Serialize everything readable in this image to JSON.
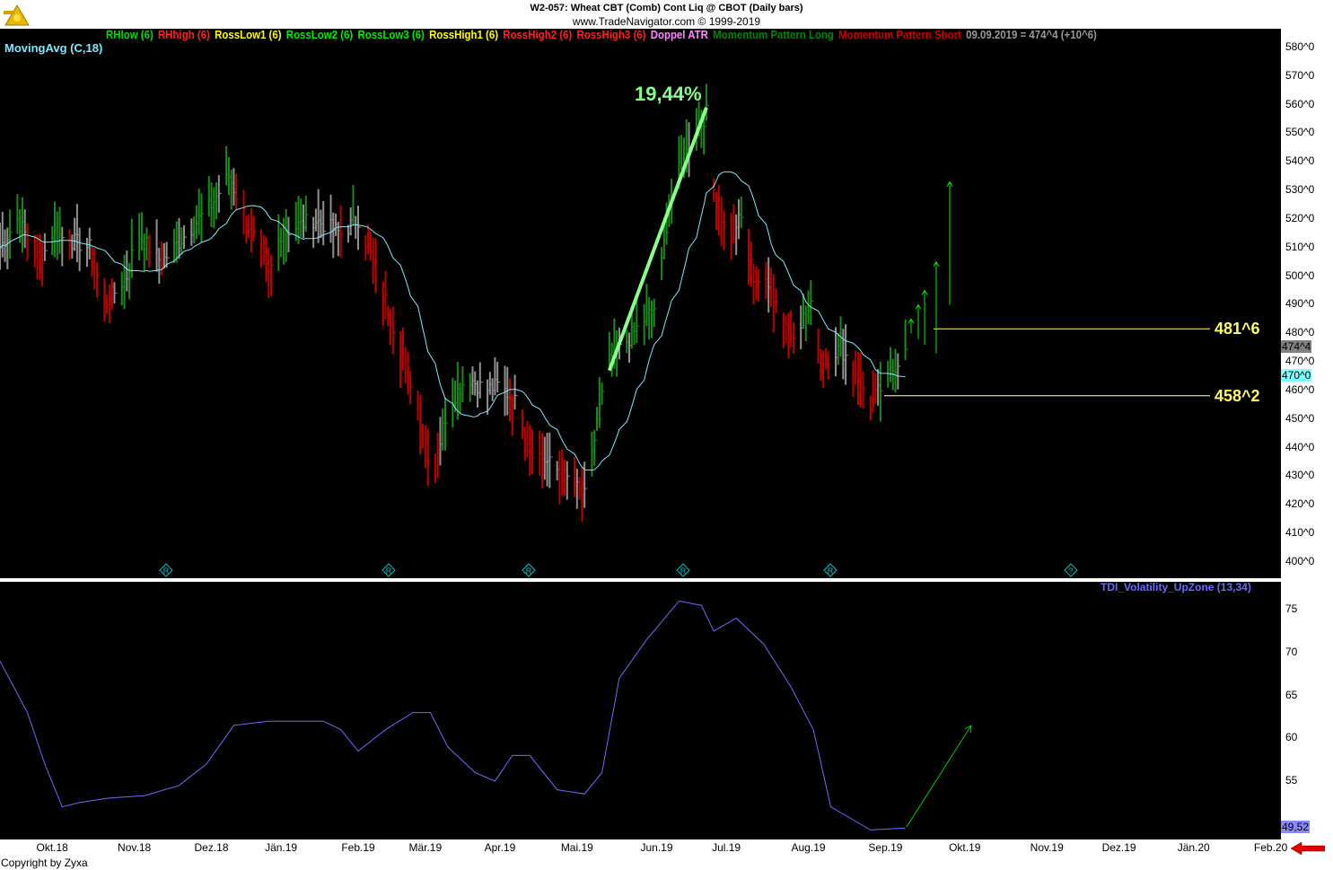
{
  "header": {
    "title": "W2-057:  Wheat CBT (Comb) Cont Liq @ CBOT  (Daily bars)",
    "subtitle": "www.TradeNavigator.com © 1999-2019",
    "copyright": "Copyright by Zyxa",
    "logo_icon": "sextant-logo-icon"
  },
  "legend": [
    {
      "label": "RHlow (6)",
      "color": "#00dd00"
    },
    {
      "label": "RHhigh (6)",
      "color": "#ff2020"
    },
    {
      "label": "RossLow1 (6)",
      "color": "#ffff00"
    },
    {
      "label": "RossLow2 (6)",
      "color": "#00ee00"
    },
    {
      "label": "RossLow3 (6)",
      "color": "#00ee00"
    },
    {
      "label": "RossHigh1 (6)",
      "color": "#ffff00"
    },
    {
      "label": "RossHigh2 (6)",
      "color": "#ff2020"
    },
    {
      "label": "RossHigh3 (6)",
      "color": "#ff2020"
    },
    {
      "label": "Doppel ATR",
      "color": "#ff88ff"
    },
    {
      "label": "Momentum Pattern Long",
      "color": "#008800"
    },
    {
      "label": "Momentum Pattern Short",
      "color": "#cc0000"
    },
    {
      "label": "09.09.2019 = 474^4 (+10^6)",
      "color": "#999999"
    }
  ],
  "moving_avg_label": "MovingAvg (C,18)",
  "tdi_label": "TDI_Volatility_UpZone (13,34)",
  "last_price_tag": "474^4",
  "ma_tag": "470^0",
  "tdi_tag": "49,52",
  "chart_data": [
    {
      "type": "bar",
      "title": "",
      "ylim": [
        398,
        583
      ],
      "xlim": [
        "2018-09-10",
        "2020-02-07"
      ],
      "y_ticks": [
        "580^0",
        "570^0",
        "560^0",
        "550^0",
        "540^0",
        "530^0",
        "520^0",
        "510^0",
        "500^0",
        "490^0",
        "480^0",
        "470^0",
        "460^0",
        "450^0",
        "440^0",
        "430^0",
        "420^0",
        "410^0",
        "400^0"
      ],
      "x_ticks": [
        {
          "date": "2018-10-01",
          "label": "Okt.18"
        },
        {
          "date": "2018-11-03",
          "label": "Nov.18"
        },
        {
          "date": "2018-12-04",
          "label": "Dez.18"
        },
        {
          "date": "2019-01-01",
          "label": "Jän.19"
        },
        {
          "date": "2019-02-01",
          "label": "Feb.19"
        },
        {
          "date": "2019-02-28",
          "label": "Mär.19"
        },
        {
          "date": "2019-03-30",
          "label": "Apr.19"
        },
        {
          "date": "2019-04-30",
          "label": "Mai.19"
        },
        {
          "date": "2019-06-01",
          "label": "Jun.19"
        },
        {
          "date": "2019-06-29",
          "label": "Jul.19"
        },
        {
          "date": "2019-08-01",
          "label": "Aug.19"
        },
        {
          "date": "2019-09-01",
          "label": "Sep.19"
        },
        {
          "date": "2019-09-30",
          "label": "Okt.19"
        },
        {
          "date": "2019-11-02",
          "label": "Nov.19"
        },
        {
          "date": "2019-12-01",
          "label": "Dez.19"
        },
        {
          "date": "2019-12-31",
          "label": "Jän.20"
        },
        {
          "date": "2020-01-31",
          "label": "Feb.20"
        }
      ],
      "close_keypoints": [
        [
          "2018-09-10",
          510
        ],
        [
          "2018-09-17",
          520
        ],
        [
          "2018-09-26",
          505
        ],
        [
          "2018-10-01",
          515
        ],
        [
          "2018-10-16",
          510
        ],
        [
          "2018-10-22",
          490
        ],
        [
          "2018-10-31",
          500
        ],
        [
          "2018-11-04",
          515
        ],
        [
          "2018-11-14",
          505
        ],
        [
          "2018-12-04",
          525
        ],
        [
          "2018-12-11",
          535
        ],
        [
          "2018-12-18",
          520
        ],
        [
          "2018-12-27",
          500
        ],
        [
          "2019-01-01",
          515
        ],
        [
          "2019-01-14",
          520
        ],
        [
          "2019-01-25",
          515
        ],
        [
          "2019-02-01",
          520
        ],
        [
          "2019-02-09",
          500
        ],
        [
          "2019-02-16",
          480
        ],
        [
          "2019-02-25",
          455
        ],
        [
          "2019-03-03",
          430
        ],
        [
          "2019-03-09",
          455
        ],
        [
          "2019-03-17",
          465
        ],
        [
          "2019-03-24",
          460
        ],
        [
          "2019-03-30",
          462
        ],
        [
          "2019-04-06",
          455
        ],
        [
          "2019-04-11",
          440
        ],
        [
          "2019-04-18",
          435
        ],
        [
          "2019-04-25",
          430
        ],
        [
          "2019-05-04",
          422
        ],
        [
          "2019-05-08",
          450
        ],
        [
          "2019-05-13",
          470
        ],
        [
          "2019-06-01",
          490
        ],
        [
          "2019-06-06",
          525
        ],
        [
          "2019-06-11",
          540
        ],
        [
          "2019-06-21",
          557
        ],
        [
          "2019-06-24",
          530
        ],
        [
          "2019-06-29",
          515
        ],
        [
          "2019-07-05",
          520
        ],
        [
          "2019-07-10",
          500
        ],
        [
          "2019-07-17",
          495
        ],
        [
          "2019-07-25",
          480
        ],
        [
          "2019-08-03",
          490
        ],
        [
          "2019-08-06",
          470
        ],
        [
          "2019-08-14",
          475
        ],
        [
          "2019-08-21",
          465
        ],
        [
          "2019-08-26",
          455
        ],
        [
          "2019-09-09",
          474.4
        ]
      ],
      "moving_average_period": 18,
      "moving_average_color": "#7fe8ff",
      "levels": [
        {
          "value": 481.6,
          "label": "481^6"
        },
        {
          "value": 458.2,
          "label": "458^2"
        }
      ],
      "trendline": {
        "from": [
          "2019-05-13",
          467
        ],
        "to": [
          "2019-06-21",
          559
        ],
        "label": "19,44%",
        "color": "#88ff88"
      },
      "colors": {
        "up": "#1a8a1a",
        "down": "#c00000",
        "neutral": "#909090"
      }
    },
    {
      "type": "line",
      "name": "TDI_Volatility_UpZone (13,34)",
      "ylim": [
        48.5,
        78
      ],
      "y_ticks": [
        "75",
        "70",
        "65",
        "60",
        "55"
      ],
      "color": "#6a6aff",
      "points": [
        [
          "2018-09-10",
          69
        ],
        [
          "2018-09-21",
          63
        ],
        [
          "2018-09-28",
          57
        ],
        [
          "2018-10-05",
          52
        ],
        [
          "2018-10-12",
          52.5
        ],
        [
          "2018-10-23",
          53
        ],
        [
          "2018-11-07",
          53.3
        ],
        [
          "2018-11-21",
          54.5
        ],
        [
          "2018-12-02",
          57
        ],
        [
          "2018-12-13",
          61.5
        ],
        [
          "2018-12-27",
          62
        ],
        [
          "2019-01-18",
          62
        ],
        [
          "2019-01-25",
          61
        ],
        [
          "2019-02-01",
          58.5
        ],
        [
          "2019-02-12",
          61
        ],
        [
          "2019-02-23",
          63
        ],
        [
          "2019-03-02",
          63
        ],
        [
          "2019-03-09",
          59
        ],
        [
          "2019-03-20",
          56
        ],
        [
          "2019-03-28",
          55
        ],
        [
          "2019-04-04",
          58
        ],
        [
          "2019-04-11",
          58
        ],
        [
          "2019-04-22",
          54
        ],
        [
          "2019-05-03",
          53.5
        ],
        [
          "2019-05-10",
          56
        ],
        [
          "2019-05-17",
          67
        ],
        [
          "2019-05-28",
          71.5
        ],
        [
          "2019-06-10",
          76
        ],
        [
          "2019-06-19",
          75.5
        ],
        [
          "2019-06-24",
          72.5
        ],
        [
          "2019-07-03",
          74
        ],
        [
          "2019-07-14",
          71
        ],
        [
          "2019-07-25",
          66
        ],
        [
          "2019-08-03",
          61
        ],
        [
          "2019-08-10",
          52
        ],
        [
          "2019-08-19",
          50.5
        ],
        [
          "2019-08-26",
          49.3
        ],
        [
          "2019-09-09",
          49.52
        ]
      ]
    }
  ]
}
